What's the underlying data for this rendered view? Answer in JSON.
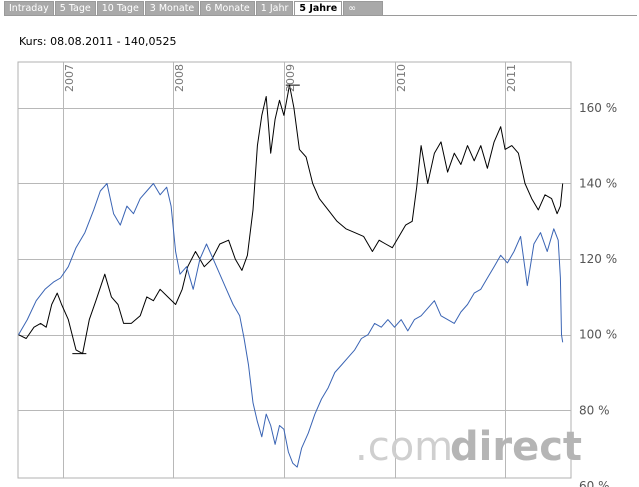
{
  "tabs": [
    {
      "label": "Intraday",
      "active": false
    },
    {
      "label": "5 Tage",
      "active": false
    },
    {
      "label": "10 Tage",
      "active": false
    },
    {
      "label": "3 Monate",
      "active": false
    },
    {
      "label": "6 Monate",
      "active": false
    },
    {
      "label": "1 Jahr",
      "active": false
    },
    {
      "label": "5 Jahre",
      "active": true
    },
    {
      "label": "∞",
      "active": false
    }
  ],
  "quote": "Kurs: 08.08.2011 - 140,0525",
  "watermark": {
    "part1": ".com",
    "part2": "direct"
  },
  "chart_data": {
    "type": "line",
    "ylim": [
      60,
      170
    ],
    "xlim": [
      2006.6,
      2011.6
    ],
    "y_ticks": [
      60,
      80,
      100,
      120,
      140,
      160
    ],
    "y_tick_labels": [
      "60 %",
      "80 %",
      "100 %",
      "120 %",
      "140 %",
      "160 %"
    ],
    "x_ticks": [
      2007.0,
      2008.0,
      2009.0,
      2010.0,
      2011.0
    ],
    "x_tick_labels": [
      "2007",
      "2008",
      "2009",
      "2010",
      "2011"
    ],
    "grid": true,
    "series": [
      {
        "color": "#000000",
        "points": [
          [
            2006.6,
            100
          ],
          [
            2006.67,
            99
          ],
          [
            2006.74,
            102
          ],
          [
            2006.8,
            103
          ],
          [
            2006.85,
            102
          ],
          [
            2006.9,
            108
          ],
          [
            2006.95,
            111
          ],
          [
            2006.99,
            108
          ],
          [
            2007.05,
            104
          ],
          [
            2007.12,
            96
          ],
          [
            2007.18,
            95
          ],
          [
            2007.24,
            104
          ],
          [
            2007.3,
            109
          ],
          [
            2007.38,
            116
          ],
          [
            2007.44,
            110
          ],
          [
            2007.5,
            108
          ],
          [
            2007.55,
            103
          ],
          [
            2007.62,
            103
          ],
          [
            2007.7,
            105
          ],
          [
            2007.76,
            110
          ],
          [
            2007.82,
            109
          ],
          [
            2007.88,
            112
          ],
          [
            2007.95,
            110
          ],
          [
            2008.02,
            108
          ],
          [
            2008.08,
            112
          ],
          [
            2008.13,
            118
          ],
          [
            2008.2,
            122
          ],
          [
            2008.28,
            118
          ],
          [
            2008.35,
            120
          ],
          [
            2008.42,
            124
          ],
          [
            2008.5,
            125
          ],
          [
            2008.56,
            120
          ],
          [
            2008.62,
            117
          ],
          [
            2008.67,
            121
          ],
          [
            2008.72,
            133
          ],
          [
            2008.76,
            150
          ],
          [
            2008.8,
            158
          ],
          [
            2008.84,
            163
          ],
          [
            2008.88,
            148
          ],
          [
            2008.92,
            157
          ],
          [
            2008.96,
            162
          ],
          [
            2009.0,
            158
          ],
          [
            2009.05,
            166
          ],
          [
            2009.09,
            160
          ],
          [
            2009.14,
            149
          ],
          [
            2009.2,
            147
          ],
          [
            2009.26,
            140
          ],
          [
            2009.32,
            136
          ],
          [
            2009.4,
            133
          ],
          [
            2009.48,
            130
          ],
          [
            2009.56,
            128
          ],
          [
            2009.64,
            127
          ],
          [
            2009.72,
            126
          ],
          [
            2009.8,
            122
          ],
          [
            2009.86,
            125
          ],
          [
            2009.92,
            124
          ],
          [
            2009.98,
            123
          ],
          [
            2010.04,
            126
          ],
          [
            2010.1,
            129
          ],
          [
            2010.16,
            130
          ],
          [
            2010.2,
            139
          ],
          [
            2010.24,
            150
          ],
          [
            2010.3,
            140
          ],
          [
            2010.36,
            148
          ],
          [
            2010.42,
            151
          ],
          [
            2010.48,
            143
          ],
          [
            2010.54,
            148
          ],
          [
            2010.6,
            145
          ],
          [
            2010.66,
            150
          ],
          [
            2010.72,
            146
          ],
          [
            2010.78,
            150
          ],
          [
            2010.84,
            144
          ],
          [
            2010.9,
            151
          ],
          [
            2010.96,
            155
          ],
          [
            2011.0,
            149
          ],
          [
            2011.06,
            150
          ],
          [
            2011.12,
            148
          ],
          [
            2011.18,
            140
          ],
          [
            2011.24,
            136
          ],
          [
            2011.3,
            133
          ],
          [
            2011.36,
            137
          ],
          [
            2011.42,
            136
          ],
          [
            2011.47,
            132
          ],
          [
            2011.5,
            134
          ],
          [
            2011.52,
            140
          ]
        ]
      },
      {
        "color": "#3a64b4",
        "points": [
          [
            2006.6,
            100
          ],
          [
            2006.68,
            104
          ],
          [
            2006.76,
            109
          ],
          [
            2006.84,
            112
          ],
          [
            2006.92,
            114
          ],
          [
            2006.98,
            115
          ],
          [
            2007.05,
            118
          ],
          [
            2007.12,
            123
          ],
          [
            2007.2,
            127
          ],
          [
            2007.28,
            133
          ],
          [
            2007.34,
            138
          ],
          [
            2007.4,
            140
          ],
          [
            2007.46,
            132
          ],
          [
            2007.52,
            129
          ],
          [
            2007.58,
            134
          ],
          [
            2007.64,
            132
          ],
          [
            2007.7,
            136
          ],
          [
            2007.76,
            138
          ],
          [
            2007.82,
            140
          ],
          [
            2007.88,
            137
          ],
          [
            2007.94,
            139
          ],
          [
            2007.98,
            134
          ],
          [
            2008.02,
            122
          ],
          [
            2008.06,
            116
          ],
          [
            2008.12,
            118
          ],
          [
            2008.18,
            112
          ],
          [
            2008.24,
            120
          ],
          [
            2008.3,
            124
          ],
          [
            2008.36,
            120
          ],
          [
            2008.42,
            116
          ],
          [
            2008.48,
            112
          ],
          [
            2008.54,
            108
          ],
          [
            2008.6,
            105
          ],
          [
            2008.64,
            99
          ],
          [
            2008.68,
            92
          ],
          [
            2008.72,
            82
          ],
          [
            2008.76,
            77
          ],
          [
            2008.8,
            73
          ],
          [
            2008.84,
            79
          ],
          [
            2008.88,
            76
          ],
          [
            2008.92,
            71
          ],
          [
            2008.96,
            76
          ],
          [
            2009.0,
            75
          ],
          [
            2009.04,
            69
          ],
          [
            2009.08,
            66
          ],
          [
            2009.12,
            65
          ],
          [
            2009.16,
            70
          ],
          [
            2009.22,
            74
          ],
          [
            2009.28,
            79
          ],
          [
            2009.34,
            83
          ],
          [
            2009.4,
            86
          ],
          [
            2009.46,
            90
          ],
          [
            2009.52,
            92
          ],
          [
            2009.58,
            94
          ],
          [
            2009.64,
            96
          ],
          [
            2009.7,
            99
          ],
          [
            2009.76,
            100
          ],
          [
            2009.82,
            103
          ],
          [
            2009.88,
            102
          ],
          [
            2009.94,
            104
          ],
          [
            2010.0,
            102
          ],
          [
            2010.06,
            104
          ],
          [
            2010.12,
            101
          ],
          [
            2010.18,
            104
          ],
          [
            2010.24,
            105
          ],
          [
            2010.3,
            107
          ],
          [
            2010.36,
            109
          ],
          [
            2010.42,
            105
          ],
          [
            2010.48,
            104
          ],
          [
            2010.54,
            103
          ],
          [
            2010.6,
            106
          ],
          [
            2010.66,
            108
          ],
          [
            2010.72,
            111
          ],
          [
            2010.78,
            112
          ],
          [
            2010.84,
            115
          ],
          [
            2010.9,
            118
          ],
          [
            2010.96,
            121
          ],
          [
            2011.02,
            119
          ],
          [
            2011.08,
            122
          ],
          [
            2011.14,
            126
          ],
          [
            2011.2,
            113
          ],
          [
            2011.26,
            124
          ],
          [
            2011.32,
            127
          ],
          [
            2011.38,
            122
          ],
          [
            2011.44,
            128
          ],
          [
            2011.48,
            125
          ],
          [
            2011.5,
            115
          ],
          [
            2011.51,
            100
          ],
          [
            2011.52,
            98
          ]
        ]
      }
    ],
    "markers": [
      {
        "x": 2007.15,
        "y": 95
      },
      {
        "x": 2009.08,
        "y": 166
      }
    ]
  }
}
